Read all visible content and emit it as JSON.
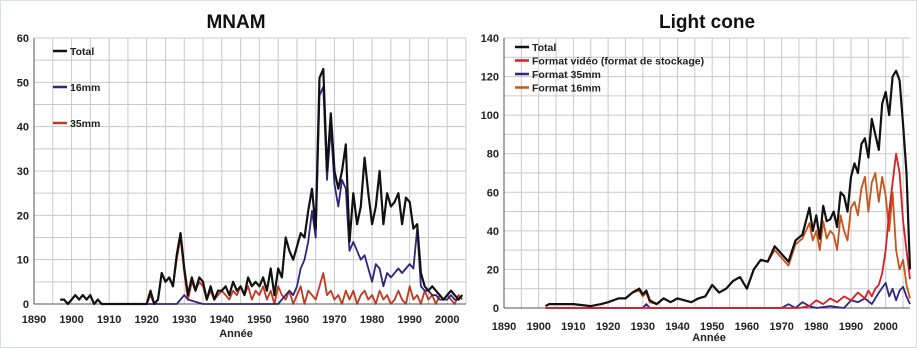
{
  "chart_data": [
    {
      "type": "line",
      "title": "MNAM",
      "xlabel": "Année",
      "ylabel": "",
      "xlim": [
        1890,
        2005
      ],
      "ylim": [
        0,
        60
      ],
      "xticks": [
        1890,
        1900,
        1910,
        1920,
        1930,
        1940,
        1950,
        1960,
        1970,
        1980,
        1990,
        2000
      ],
      "yticks": [
        0,
        10,
        20,
        30,
        40,
        50,
        60
      ],
      "grid": true,
      "legend_position": "top-left",
      "series": [
        {
          "name": "Total",
          "color": "#111111",
          "x": [
            1897,
            1898,
            1899,
            1900,
            1901,
            1902,
            1903,
            1904,
            1905,
            1906,
            1907,
            1908,
            1910,
            1915,
            1920,
            1921,
            1922,
            1923,
            1924,
            1925,
            1926,
            1927,
            1928,
            1929,
            1930,
            1931,
            1932,
            1933,
            1934,
            1935,
            1936,
            1937,
            1938,
            1939,
            1940,
            1941,
            1942,
            1943,
            1944,
            1945,
            1946,
            1947,
            1948,
            1949,
            1950,
            1951,
            1952,
            1953,
            1954,
            1955,
            1956,
            1957,
            1958,
            1959,
            1960,
            1961,
            1962,
            1963,
            1964,
            1965,
            1966,
            1967,
            1968,
            1969,
            1970,
            1971,
            1972,
            1973,
            1974,
            1975,
            1976,
            1977,
            1978,
            1979,
            1980,
            1981,
            1982,
            1983,
            1984,
            1985,
            1986,
            1987,
            1988,
            1989,
            1990,
            1991,
            1992,
            1993,
            1994,
            1995,
            1996,
            1997,
            1998,
            1999,
            2000,
            2001,
            2002,
            2003,
            2004
          ],
          "y": [
            1,
            1,
            0,
            1,
            2,
            1,
            2,
            1,
            2,
            0,
            1,
            0,
            0,
            0,
            0,
            3,
            0,
            1,
            7,
            5,
            6,
            4,
            11,
            16,
            8,
            2,
            6,
            3,
            6,
            5,
            1,
            4,
            1,
            3,
            3,
            4,
            2,
            5,
            3,
            4,
            2,
            6,
            4,
            5,
            4,
            6,
            3,
            8,
            2,
            8,
            6,
            15,
            12,
            10,
            13,
            16,
            15,
            21,
            26,
            17,
            51,
            53,
            30,
            43,
            30,
            26,
            30,
            36,
            14,
            25,
            18,
            22,
            33,
            25,
            18,
            22,
            30,
            18,
            25,
            22,
            23,
            25,
            18,
            24,
            23,
            17,
            18,
            7,
            4,
            3,
            4,
            3,
            2,
            1,
            2,
            3,
            2,
            1,
            2
          ]
        },
        {
          "name": "16mm",
          "color": "#2d2580",
          "x": [
            1920,
            1928,
            1929,
            1930,
            1931,
            1935,
            1945,
            1950,
            1955,
            1957,
            1958,
            1959,
            1960,
            1961,
            1962,
            1963,
            1964,
            1965,
            1966,
            1967,
            1968,
            1969,
            1970,
            1971,
            1972,
            1973,
            1974,
            1975,
            1976,
            1977,
            1978,
            1979,
            1980,
            1981,
            1982,
            1983,
            1984,
            1985,
            1986,
            1987,
            1988,
            1989,
            1990,
            1991,
            1992,
            1993,
            1994,
            1995,
            1996,
            1997,
            1998,
            1999,
            2000,
            2001,
            2002,
            2003,
            2004
          ],
          "y": [
            0,
            0,
            1,
            2,
            1,
            0,
            0,
            0,
            0,
            2,
            3,
            2,
            4,
            8,
            10,
            14,
            21,
            15,
            47,
            49,
            28,
            40,
            27,
            22,
            28,
            26,
            12,
            14,
            12,
            10,
            11,
            8,
            5,
            9,
            8,
            4,
            7,
            6,
            7,
            8,
            7,
            8,
            9,
            8,
            17,
            4,
            3,
            3,
            2,
            2,
            1,
            1,
            1,
            2,
            1,
            1,
            2
          ]
        },
        {
          "name": "35mm",
          "color": "#c0391f",
          "x": [
            1897,
            1898,
            1899,
            1900,
            1901,
            1902,
            1903,
            1904,
            1905,
            1906,
            1907,
            1908,
            1910,
            1920,
            1921,
            1922,
            1923,
            1924,
            1925,
            1926,
            1927,
            1928,
            1929,
            1930,
            1931,
            1932,
            1933,
            1934,
            1935,
            1936,
            1937,
            1938,
            1939,
            1940,
            1941,
            1942,
            1943,
            1944,
            1945,
            1946,
            1947,
            1948,
            1949,
            1950,
            1951,
            1952,
            1953,
            1954,
            1955,
            1956,
            1957,
            1958,
            1959,
            1960,
            1961,
            1962,
            1963,
            1964,
            1965,
            1966,
            1967,
            1968,
            1969,
            1970,
            1971,
            1972,
            1973,
            1974,
            1975,
            1976,
            1977,
            1978,
            1979,
            1980,
            1981,
            1982,
            1983,
            1984,
            1985,
            1986,
            1987,
            1988,
            1989,
            1990,
            1991,
            1992,
            1993,
            1994,
            1995,
            1996,
            1997,
            1998,
            1999,
            2000,
            2001,
            2002,
            2003,
            2004
          ],
          "y": [
            1,
            1,
            0,
            1,
            2,
            1,
            2,
            1,
            2,
            0,
            1,
            0,
            0,
            0,
            2,
            0,
            1,
            7,
            5,
            6,
            4,
            10,
            15,
            7,
            1,
            5,
            3,
            5,
            4,
            1,
            3,
            1,
            2,
            3,
            2,
            1,
            3,
            2,
            4,
            2,
            4,
            1,
            3,
            2,
            4,
            1,
            3,
            0,
            4,
            2,
            1,
            3,
            0,
            2,
            4,
            0,
            3,
            2,
            1,
            4,
            7,
            2,
            3,
            1,
            2,
            0,
            3,
            1,
            3,
            0,
            2,
            3,
            1,
            2,
            0,
            3,
            1,
            2,
            0,
            1,
            3,
            1,
            0,
            4,
            1,
            2,
            0,
            3,
            1,
            2,
            0,
            2,
            1,
            2,
            1,
            0,
            2,
            1
          ]
        }
      ]
    },
    {
      "type": "line",
      "title": "Light cone",
      "xlabel": "Année",
      "ylabel": "",
      "xlim": [
        1890,
        2007
      ],
      "ylim": [
        0,
        140
      ],
      "xticks": [
        1890,
        1900,
        1910,
        1920,
        1930,
        1940,
        1950,
        1960,
        1970,
        1980,
        1990,
        2000
      ],
      "yticks": [
        0,
        20,
        40,
        60,
        80,
        100,
        120,
        140
      ],
      "grid": true,
      "legend_position": "top-left",
      "series": [
        {
          "name": "Total",
          "color": "#111111",
          "x": [
            1902,
            1903,
            1905,
            1910,
            1915,
            1918,
            1920,
            1923,
            1925,
            1927,
            1929,
            1930,
            1931,
            1932,
            1934,
            1936,
            1938,
            1940,
            1942,
            1944,
            1946,
            1948,
            1950,
            1952,
            1954,
            1956,
            1958,
            1960,
            1962,
            1964,
            1966,
            1968,
            1970,
            1972,
            1974,
            1976,
            1978,
            1979,
            1980,
            1981,
            1982,
            1983,
            1984,
            1985,
            1986,
            1987,
            1988,
            1989,
            1990,
            1991,
            1992,
            1993,
            1994,
            1995,
            1996,
            1997,
            1998,
            1999,
            2000,
            2001,
            2002,
            2003,
            2004,
            2005,
            2006,
            2007
          ],
          "y": [
            1,
            2,
            2,
            2,
            1,
            2,
            3,
            5,
            5,
            8,
            10,
            7,
            9,
            4,
            2,
            5,
            3,
            5,
            4,
            3,
            5,
            6,
            12,
            8,
            10,
            14,
            16,
            10,
            20,
            25,
            24,
            32,
            28,
            24,
            35,
            38,
            52,
            40,
            48,
            36,
            53,
            45,
            46,
            50,
            42,
            60,
            58,
            50,
            68,
            75,
            70,
            85,
            88,
            78,
            98,
            90,
            82,
            106,
            112,
            100,
            120,
            123,
            118,
            95,
            70,
            20
          ]
        },
        {
          "name": "Format vidéo (format de stockage)",
          "color": "#d91f26",
          "x": [
            1902,
            1960,
            1970,
            1975,
            1978,
            1980,
            1982,
            1984,
            1986,
            1988,
            1990,
            1992,
            1994,
            1995,
            1996,
            1997,
            1998,
            1999,
            2000,
            2001,
            2002,
            2003,
            2004,
            2005,
            2006,
            2007
          ],
          "y": [
            0,
            0,
            0,
            0,
            1,
            4,
            2,
            5,
            3,
            6,
            4,
            8,
            5,
            9,
            6,
            10,
            12,
            18,
            30,
            50,
            65,
            80,
            70,
            45,
            30,
            15
          ]
        },
        {
          "name": "Format 35mm",
          "color": "#2d2580",
          "x": [
            1902,
            1930,
            1931,
            1932,
            1960,
            1970,
            1972,
            1974,
            1976,
            1978,
            1980,
            1984,
            1988,
            1990,
            1992,
            1994,
            1996,
            1998,
            2000,
            2001,
            2002,
            2003,
            2004,
            2005,
            2006,
            2007
          ],
          "y": [
            0,
            0,
            2,
            0,
            0,
            0,
            2,
            0,
            3,
            1,
            0,
            1,
            0,
            4,
            3,
            5,
            2,
            8,
            13,
            6,
            10,
            4,
            9,
            11,
            6,
            2
          ]
        },
        {
          "name": "Format 16mm",
          "color": "#c85418",
          "x": [
            1902,
            1903,
            1905,
            1910,
            1915,
            1918,
            1920,
            1923,
            1925,
            1927,
            1929,
            1930,
            1931,
            1932,
            1934,
            1936,
            1938,
            1940,
            1942,
            1944,
            1946,
            1948,
            1950,
            1952,
            1954,
            1956,
            1958,
            1960,
            1962,
            1964,
            1966,
            1968,
            1970,
            1972,
            1974,
            1976,
            1978,
            1979,
            1980,
            1981,
            1982,
            1983,
            1984,
            1985,
            1986,
            1987,
            1988,
            1989,
            1990,
            1991,
            1992,
            1993,
            1994,
            1995,
            1996,
            1997,
            1998,
            1999,
            2000,
            2001,
            2002,
            2003,
            2004,
            2005,
            2006,
            2007
          ],
          "y": [
            1,
            2,
            2,
            2,
            1,
            2,
            3,
            5,
            5,
            8,
            9,
            6,
            8,
            3,
            2,
            5,
            3,
            5,
            4,
            3,
            5,
            6,
            12,
            8,
            10,
            14,
            16,
            10,
            20,
            25,
            24,
            30,
            26,
            22,
            33,
            36,
            44,
            35,
            40,
            30,
            45,
            36,
            40,
            38,
            30,
            48,
            40,
            35,
            52,
            55,
            48,
            62,
            68,
            50,
            65,
            70,
            55,
            68,
            58,
            40,
            60,
            30,
            20,
            25,
            12,
            5
          ]
        }
      ]
    }
  ]
}
